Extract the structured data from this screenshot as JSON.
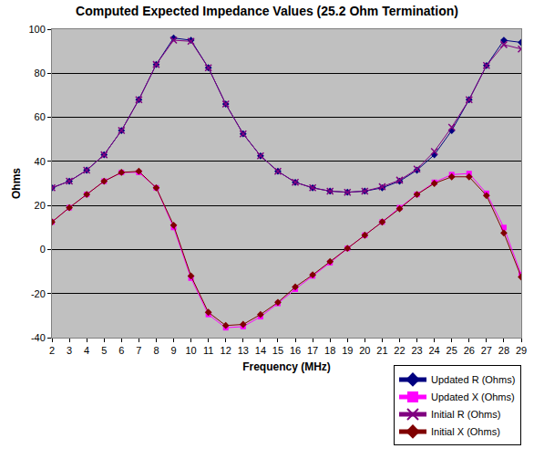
{
  "chart_data": {
    "type": "line",
    "title": "Computed Expected Impedance Values (25.2 Ohm Termination)",
    "x_label": "Frequency (MHz)",
    "y_label": "Ohms",
    "x": [
      2,
      3,
      4,
      5,
      6,
      7,
      8,
      9,
      10,
      11,
      12,
      13,
      14,
      15,
      16,
      17,
      18,
      19,
      20,
      21,
      22,
      23,
      24,
      25,
      26,
      27,
      28,
      29
    ],
    "series": [
      {
        "name": "Updated R (Ohms)",
        "color": "#000080",
        "marker": "diamond",
        "values": [
          28,
          31,
          36,
          43,
          54,
          68,
          84,
          96,
          95,
          82.5,
          66,
          52.5,
          42.5,
          35.5,
          30.5,
          28,
          26.5,
          26,
          26.5,
          28,
          31,
          36,
          43,
          54,
          68,
          83.5,
          95,
          94
        ]
      },
      {
        "name": "Updated X (Ohms)",
        "color": "#ff00ff",
        "marker": "square",
        "values": [
          12.5,
          19,
          25,
          31,
          35,
          35,
          28,
          10,
          -13,
          -29.5,
          -35.5,
          -35,
          -30.5,
          -24.5,
          -18,
          -12,
          -6,
          0.5,
          6.5,
          12.5,
          19,
          25,
          30.5,
          34,
          34.5,
          25.5,
          10,
          -11.5
        ]
      },
      {
        "name": "Initial R (Ohms)",
        "color": "#800080",
        "marker": "x",
        "values": [
          28,
          31,
          36,
          43,
          54,
          68,
          84,
          95,
          94.5,
          82.5,
          66,
          52.5,
          42.5,
          35.5,
          30.5,
          28,
          26.5,
          26,
          26.5,
          28.5,
          31.5,
          36.5,
          44.5,
          55.5,
          68,
          83.5,
          93,
          91
        ]
      },
      {
        "name": "Initial X (Ohms)",
        "color": "#800000",
        "marker": "diamond",
        "values": [
          12.5,
          19,
          25,
          31,
          35,
          35.5,
          28,
          11,
          -12,
          -28.5,
          -34.5,
          -34,
          -29.5,
          -24,
          -17,
          -11.5,
          -5.5,
          0.5,
          6.5,
          12.5,
          18.5,
          25,
          30,
          33,
          33,
          24.5,
          7.5,
          -12.5
        ]
      }
    ],
    "xlim": [
      2,
      29
    ],
    "xticks": [
      2,
      3,
      4,
      5,
      6,
      7,
      8,
      9,
      10,
      11,
      12,
      13,
      14,
      15,
      16,
      17,
      18,
      19,
      20,
      21,
      22,
      23,
      24,
      25,
      26,
      27,
      28,
      29
    ],
    "ylim": [
      -40,
      100
    ],
    "yticks": [
      -40,
      -20,
      0,
      20,
      40,
      60,
      80,
      100
    ],
    "grid": true,
    "legend": "bottom right"
  }
}
